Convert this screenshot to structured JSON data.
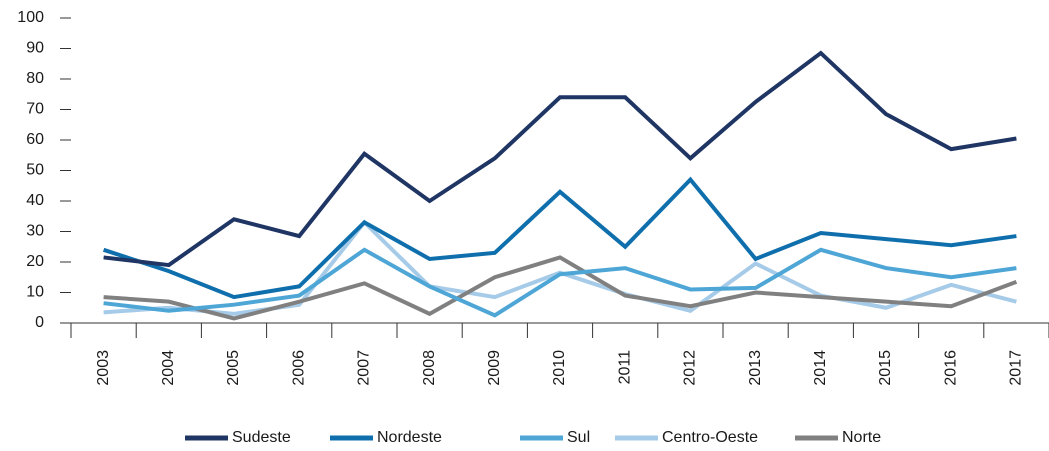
{
  "chart_data": {
    "type": "line",
    "categories": [
      "2003",
      "2004",
      "2005",
      "2006",
      "2007",
      "2008",
      "2009",
      "2010",
      "2011",
      "2012",
      "2013",
      "2014",
      "2015",
      "2016",
      "2017"
    ],
    "series": [
      {
        "name": "Sudeste",
        "color": "#1f3564",
        "values": [
          21.5,
          19,
          34,
          28.5,
          55.5,
          40,
          54,
          74,
          74,
          54,
          72.5,
          88.5,
          68.5,
          57,
          60.5
        ]
      },
      {
        "name": "Nordeste",
        "color": "#0f6fad",
        "values": [
          24,
          17,
          8.5,
          12,
          33,
          21,
          23,
          43,
          25,
          47,
          21,
          29.5,
          27.5,
          25.5,
          28.5
        ]
      },
      {
        "name": "Sul",
        "color": "#4ea6d6",
        "values": [
          6.5,
          4,
          6,
          9,
          24,
          12,
          2.5,
          16,
          18,
          11,
          11.5,
          24,
          18,
          15,
          18
        ]
      },
      {
        "name": "Centro-Oeste",
        "color": "#a6cbe8",
        "values": [
          3.5,
          5,
          3,
          6,
          33,
          12,
          8.5,
          16.5,
          9.5,
          4,
          19.5,
          9,
          5,
          12.5,
          7
        ]
      },
      {
        "name": "Norte",
        "color": "#808080",
        "values": [
          8.5,
          7,
          1.5,
          7,
          13,
          3,
          15,
          21.5,
          9,
          5.5,
          10,
          8.5,
          7,
          5.5,
          13.5
        ]
      }
    ],
    "ylim": [
      0,
      100
    ],
    "yticks": [
      0,
      10,
      20,
      30,
      40,
      50,
      60,
      70,
      80,
      90,
      100
    ],
    "grid": false
  }
}
